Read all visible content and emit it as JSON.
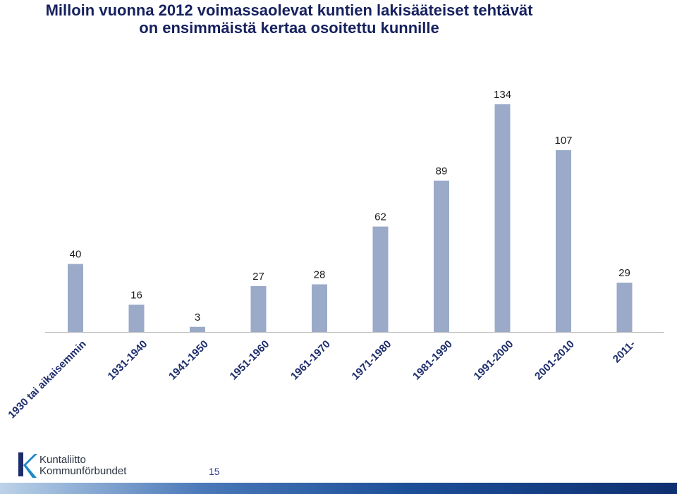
{
  "title": {
    "line1": "Milloin vuonna 2012 voimassaolevat kuntien lakisääteiset tehtävät",
    "line2": "on ensimmäistä kertaa  osoitettu kunnille"
  },
  "chart_data": {
    "type": "bar",
    "categories": [
      "1930 tai aikaisemmin",
      "1931-1940",
      "1941-1950",
      "1951-1960",
      "1961-1970",
      "1971-1980",
      "1981-1990",
      "1991-2000",
      "2001-2010",
      "2011-"
    ],
    "values": [
      40,
      16,
      3,
      27,
      28,
      62,
      89,
      134,
      107,
      29
    ],
    "bar_color": "#9aaac8",
    "axis_color": "#b5b5b5",
    "data_labels": true,
    "ylim": [
      0,
      134
    ],
    "grid": false
  },
  "logo": {
    "line1": "Kuntaliitto",
    "line2": "Kommunförbundet",
    "icon": "kuntaliitto-k-logo-icon"
  },
  "page_number": "15",
  "colors": {
    "title": "#16215e",
    "logo_blue": "#1e88c8",
    "logo_navy": "#1d2d6b",
    "footer": "#1d4f99"
  }
}
